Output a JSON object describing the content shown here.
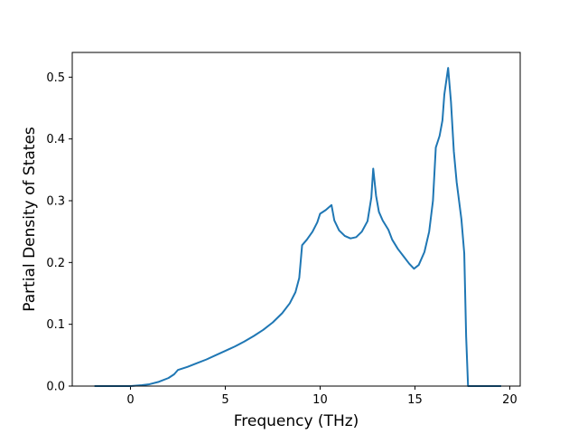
{
  "chart_data": {
    "type": "line",
    "title": "",
    "xlabel": "Frequency (THz)",
    "ylabel": "Partial Density of States",
    "xlim": [
      -3.07,
      20.55
    ],
    "ylim": [
      0.0,
      0.54
    ],
    "grid": false,
    "x_ticks": [
      0,
      5,
      10,
      15,
      20
    ],
    "x_tick_labels": [
      "0",
      "5",
      "10",
      "15",
      "20"
    ],
    "y_ticks": [
      0.0,
      0.1,
      0.2,
      0.3,
      0.4,
      0.5
    ],
    "y_tick_labels": [
      "0.0",
      "0.1",
      "0.2",
      "0.3",
      "0.4",
      "0.5"
    ],
    "series": [
      {
        "color": "#1f77b4",
        "points": [
          [
            -1.85,
            0.0
          ],
          [
            0.0,
            0.0
          ],
          [
            0.6,
            0.0015
          ],
          [
            1.0,
            0.003
          ],
          [
            1.5,
            0.007
          ],
          [
            2.0,
            0.013
          ],
          [
            2.3,
            0.019
          ],
          [
            2.5,
            0.026
          ],
          [
            3.0,
            0.031
          ],
          [
            3.5,
            0.037
          ],
          [
            4.0,
            0.043
          ],
          [
            4.5,
            0.05
          ],
          [
            5.0,
            0.057
          ],
          [
            5.5,
            0.064
          ],
          [
            6.0,
            0.072
          ],
          [
            6.5,
            0.081
          ],
          [
            7.0,
            0.091
          ],
          [
            7.5,
            0.103
          ],
          [
            8.0,
            0.118
          ],
          [
            8.4,
            0.134
          ],
          [
            8.7,
            0.152
          ],
          [
            8.9,
            0.175
          ],
          [
            9.05,
            0.228
          ],
          [
            9.3,
            0.237
          ],
          [
            9.6,
            0.25
          ],
          [
            9.85,
            0.265
          ],
          [
            10.0,
            0.279
          ],
          [
            10.3,
            0.285
          ],
          [
            10.6,
            0.293
          ],
          [
            10.75,
            0.268
          ],
          [
            11.0,
            0.252
          ],
          [
            11.3,
            0.243
          ],
          [
            11.6,
            0.239
          ],
          [
            11.9,
            0.241
          ],
          [
            12.2,
            0.25
          ],
          [
            12.5,
            0.267
          ],
          [
            12.7,
            0.305
          ],
          [
            12.8,
            0.352
          ],
          [
            12.95,
            0.308
          ],
          [
            13.1,
            0.282
          ],
          [
            13.3,
            0.268
          ],
          [
            13.6,
            0.253
          ],
          [
            13.8,
            0.237
          ],
          [
            14.1,
            0.222
          ],
          [
            14.4,
            0.21
          ],
          [
            14.7,
            0.198
          ],
          [
            14.95,
            0.19
          ],
          [
            15.2,
            0.196
          ],
          [
            15.5,
            0.217
          ],
          [
            15.75,
            0.25
          ],
          [
            15.95,
            0.3
          ],
          [
            16.1,
            0.386
          ],
          [
            16.3,
            0.405
          ],
          [
            16.45,
            0.43
          ],
          [
            16.55,
            0.472
          ],
          [
            16.75,
            0.515
          ],
          [
            16.9,
            0.46
          ],
          [
            17.05,
            0.38
          ],
          [
            17.2,
            0.33
          ],
          [
            17.45,
            0.27
          ],
          [
            17.6,
            0.215
          ],
          [
            17.7,
            0.08
          ],
          [
            17.8,
            0.0
          ],
          [
            19.5,
            0.0
          ]
        ]
      }
    ]
  }
}
